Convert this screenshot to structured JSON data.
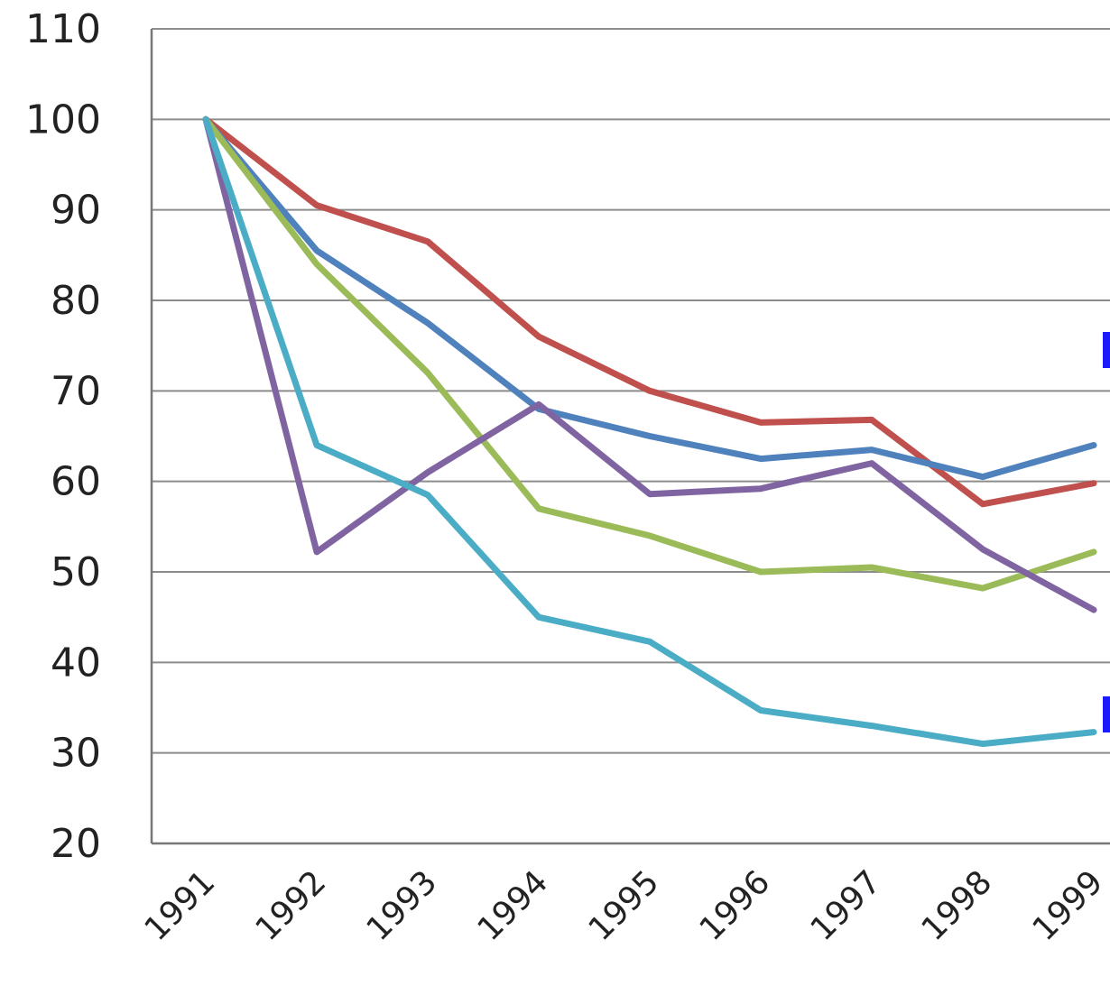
{
  "chart_data": {
    "type": "line",
    "title": "",
    "xlabel": "",
    "ylabel": "",
    "categories": [
      "1991",
      "1992",
      "1993",
      "1994",
      "1995",
      "1996",
      "1997",
      "1998",
      "1999"
    ],
    "ylim": [
      20,
      110
    ],
    "yticks": [
      20,
      30,
      40,
      50,
      60,
      70,
      80,
      90,
      100,
      110
    ],
    "grid": true,
    "legend": "none",
    "series": [
      {
        "color": "#c0504d",
        "values": [
          100,
          90.5,
          86.5,
          76,
          70,
          66.5,
          66.8,
          57.5,
          59.8
        ]
      },
      {
        "color": "#4f81bd",
        "values": [
          100,
          85.5,
          77.5,
          68,
          65,
          62.5,
          63.5,
          60.5,
          64
        ]
      },
      {
        "color": "#9bbb59",
        "values": [
          100,
          84,
          72,
          57,
          54,
          50,
          50.5,
          48.2,
          52.2
        ]
      },
      {
        "color": "#8064a2",
        "values": [
          100,
          52.2,
          61,
          68.5,
          58.6,
          59.2,
          62,
          52.5,
          45.8
        ]
      },
      {
        "color": "#4bacc6",
        "values": [
          100,
          64,
          58.5,
          45,
          42.3,
          34.7,
          33,
          31,
          32.3
        ]
      }
    ]
  }
}
